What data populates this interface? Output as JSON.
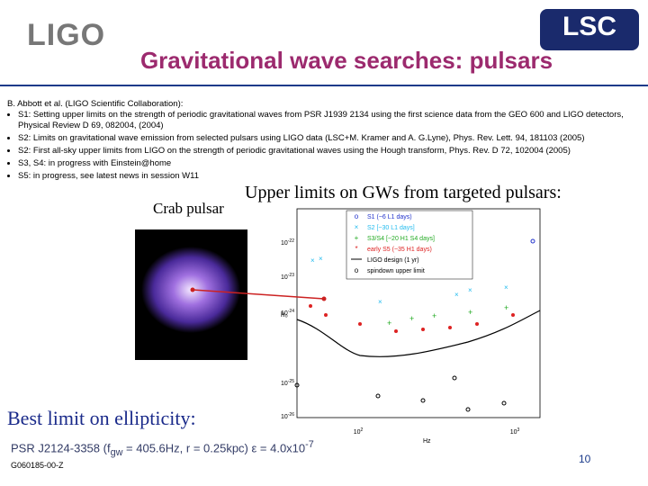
{
  "header": {
    "logo_left": "LIGO",
    "logo_right": "LSC",
    "title": "Gravitational wave searches: pulsars"
  },
  "body": {
    "authors": "B. Abbott et al. (LIGO Scientific Collaboration):",
    "bullets": [
      "S1: Setting upper limits on the strength of periodic gravitational waves from PSR J1939 2134 using the first science data from the GEO 600 and LIGO detectors, Physical Review D 69, 082004, (2004)",
      "S2: Limits on gravitational wave emission from selected pulsars using LIGO data (LSC+M. Kramer and A. G.Lyne), Phys. Rev. Lett. 94, 181103 (2005)",
      "S2: First all-sky upper limits from LIGO on the strength of periodic gravitational waves using the Hough transform, Phys. Rev. D 72, 102004 (2005)",
      "S3, S4: in progress with Einstein@home",
      "S5: in progress, see latest news in session W11"
    ]
  },
  "figure": {
    "caption": "Crab pulsar",
    "heading": "Upper limits on GWs from targeted pulsars:",
    "legend": [
      "S1 (~6 L1 days)",
      "S2 [~30 L1 days]",
      "S3/S4 [~20 H1 S4 days]",
      "early S5 (~35 H1 days)",
      "LIGO design (1 yr)",
      "spindown upper limit"
    ],
    "y_axis_label": "h₀",
    "x_axis_label": "Hz",
    "y_tick_labels": [
      {
        "base": "10",
        "exp": "-22"
      },
      {
        "base": "10",
        "exp": "-23"
      },
      {
        "base": "10",
        "exp": "-24"
      },
      {
        "base": "10",
        "exp": "-25"
      },
      {
        "base": "10",
        "exp": "-26"
      }
    ],
    "x_tick_labels": [
      {
        "base": "10",
        "exp": "2"
      },
      {
        "base": "10",
        "exp": "3"
      }
    ]
  },
  "footer": {
    "heading": "Best limit on ellipticity:",
    "result": [
      "PSR J2124-3358 (f",
      "gw",
      " = 405.6Hz, r = 0.25kpc) ε = 4.0x10",
      "-7"
    ],
    "doc_id": "G060185-00-Z",
    "page_number": "10"
  }
}
